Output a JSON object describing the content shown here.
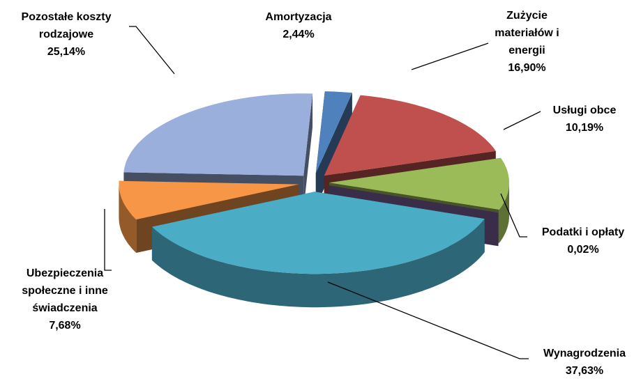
{
  "chart_data": {
    "type": "pie3d",
    "categories": [
      "Amortyzacja",
      "Zużycie materiałów i energii",
      "Usługi obce",
      "Podatki i opłaty",
      "Wynagrodzenia",
      "Ubezpieczenia społeczne i inne świadczenia",
      "Pozostałe koszty rodzajowe"
    ],
    "values": [
      2.44,
      16.9,
      10.19,
      0.02,
      37.63,
      7.68,
      25.14
    ],
    "value_labels": [
      "2,44%",
      "16,90%",
      "10,19%",
      "0,02%",
      "37,63%",
      "7,68%",
      "25,14%"
    ],
    "colors": [
      "#4f81bd",
      "#c0504d",
      "#9bbb59",
      "#8064a2",
      "#4bacc6",
      "#f79646",
      "#9aafdb"
    ]
  }
}
